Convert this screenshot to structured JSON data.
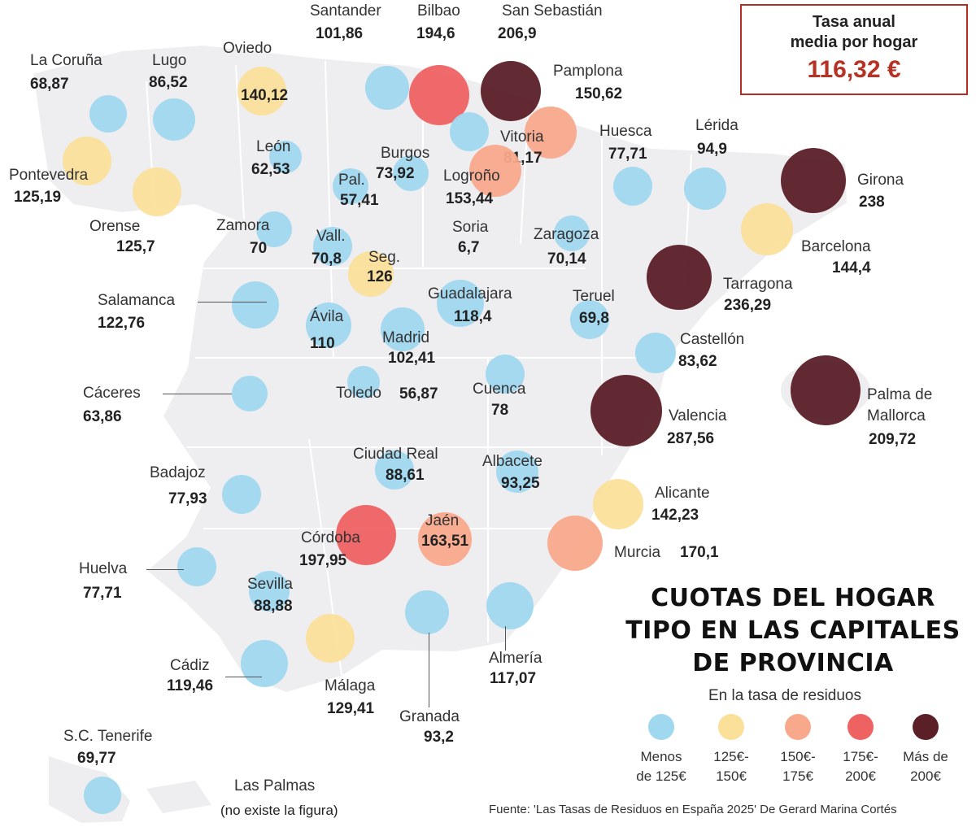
{
  "summary_box": {
    "line1": "Tasa anual",
    "line2": "media por hogar",
    "value": "116,32 €"
  },
  "title": {
    "line1": "CUOTAS DEL HOGAR",
    "line2": "TIPO EN LAS CAPITALES",
    "line3": "DE PROVINCIA"
  },
  "subtitle": "En la tasa de residuos",
  "colors": {
    "blue": "#9fd8ef",
    "yellow": "#fbe09a",
    "salmon": "#f8a98b",
    "red": "#ee6262",
    "dark": "#5a1f27",
    "land": "#eeedef",
    "accent": "#b03022"
  },
  "legend": [
    {
      "line1": "Menos",
      "line2": "de 125€",
      "category": "blue"
    },
    {
      "line1": "125€-",
      "line2": "150€",
      "category": "yellow"
    },
    {
      "line1": "150€-",
      "line2": "175€",
      "category": "salmon"
    },
    {
      "line1": "175€-",
      "line2": "200€",
      "category": "red"
    },
    {
      "line1": "Más de",
      "line2": "200€",
      "category": "dark"
    }
  ],
  "cities": [
    {
      "name": "La Coruña",
      "value": "68,87",
      "category": "blue"
    },
    {
      "name": "Lugo",
      "value": "86,52",
      "category": "blue"
    },
    {
      "name": "Oviedo",
      "value": "140,12",
      "category": "yellow"
    },
    {
      "name": "Santander",
      "value": "101,86",
      "category": "blue"
    },
    {
      "name": "Bilbao",
      "value": "194,6",
      "category": "red"
    },
    {
      "name": "San Sebastián",
      "value": "206,9",
      "category": "dark"
    },
    {
      "name": "Pamplona",
      "value": "150,62",
      "category": "salmon"
    },
    {
      "name": "Vitoria",
      "value": "81,17",
      "category": "blue"
    },
    {
      "name": "Logroño",
      "value": "153,44",
      "category": "salmon"
    },
    {
      "name": "Burgos",
      "value": "73,92",
      "category": "blue"
    },
    {
      "name": "León",
      "value": "62,53",
      "category": "blue"
    },
    {
      "name": "Pontevedra",
      "value": "125,19",
      "category": "yellow"
    },
    {
      "name": "Orense",
      "value": "125,7",
      "category": "yellow"
    },
    {
      "name": "Pal.",
      "value": "57,41",
      "category": "blue"
    },
    {
      "name": "Huesca",
      "value": "77,71",
      "category": "blue"
    },
    {
      "name": "Lérida",
      "value": "94,9",
      "category": "blue"
    },
    {
      "name": "Girona",
      "value": "238",
      "category": "dark"
    },
    {
      "name": "Barcelona",
      "value": "144,4",
      "category": "yellow"
    },
    {
      "name": "Zamora",
      "value": "70",
      "category": "blue"
    },
    {
      "name": "Soria",
      "value": "6,7",
      "category": "blue"
    },
    {
      "name": "Zaragoza",
      "value": "70,14",
      "category": "blue"
    },
    {
      "name": "Vall.",
      "value": "70,8",
      "category": "blue"
    },
    {
      "name": "Seg.",
      "value": "126",
      "category": "yellow"
    },
    {
      "name": "Tarragona",
      "value": "236,29",
      "category": "dark"
    },
    {
      "name": "Salamanca",
      "value": "122,76",
      "category": "blue"
    },
    {
      "name": "Guadalajara",
      "value": "118,4",
      "category": "blue"
    },
    {
      "name": "Teruel",
      "value": "69,8",
      "category": "blue"
    },
    {
      "name": "Ávila",
      "value": "110",
      "category": "blue"
    },
    {
      "name": "Madrid",
      "value": "102,41",
      "category": "blue"
    },
    {
      "name": "Castellón",
      "value": "83,62",
      "category": "blue"
    },
    {
      "name": "Cáceres",
      "value": "63,86",
      "category": "blue"
    },
    {
      "name": "Toledo",
      "value": "56,87",
      "category": "blue"
    },
    {
      "name": "Cuenca",
      "value": "78",
      "category": "blue"
    },
    {
      "name": "Valencia",
      "value": "287,56",
      "category": "dark"
    },
    {
      "name": "Palma de Mallorca",
      "value": "209,72",
      "category": "dark"
    },
    {
      "name": "Ciudad Real",
      "value": "88,61",
      "category": "blue"
    },
    {
      "name": "Albacete",
      "value": "93,25",
      "category": "blue"
    },
    {
      "name": "Badajoz",
      "value": "77,93",
      "category": "blue"
    },
    {
      "name": "Alicante",
      "value": "142,23",
      "category": "yellow"
    },
    {
      "name": "Córdoba",
      "value": "197,95",
      "category": "red"
    },
    {
      "name": "Jaén",
      "value": "163,51",
      "category": "salmon"
    },
    {
      "name": "Murcia",
      "value": "170,1",
      "category": "salmon"
    },
    {
      "name": "Huelva",
      "value": "77,71",
      "category": "blue"
    },
    {
      "name": "Sevilla",
      "value": "88,88",
      "category": "blue"
    },
    {
      "name": "Granada",
      "value": "93,2",
      "category": "blue"
    },
    {
      "name": "Almería",
      "value": "117,07",
      "category": "blue"
    },
    {
      "name": "Málaga",
      "value": "129,41",
      "category": "yellow"
    },
    {
      "name": "Cádiz",
      "value": "119,46",
      "category": "blue"
    },
    {
      "name": "S.C. Tenerife",
      "value": "69,77",
      "category": "blue"
    },
    {
      "name": "Las Palmas",
      "value": "(no existe la figura)",
      "category": ""
    }
  ],
  "source": "Fuente: 'Las Tasas de Residuos en España 2025' De Gerard Marina Cortés"
}
